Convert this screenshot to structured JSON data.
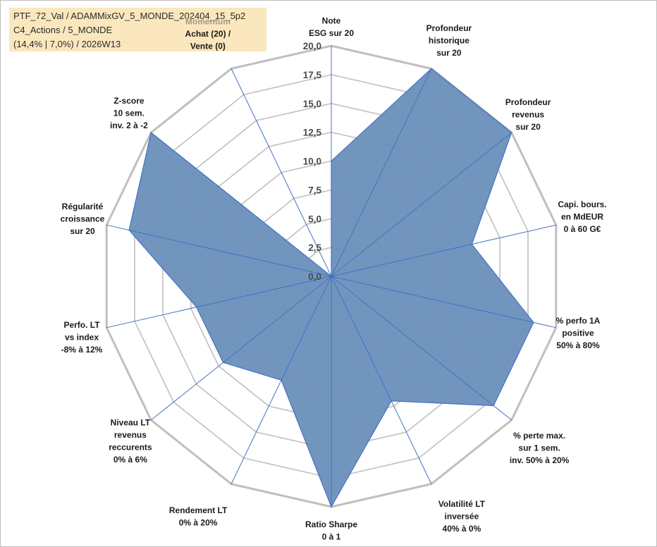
{
  "info": {
    "line1": "PTF_72_Val / ADAMMixGV_5_MONDE_202404_15_5p2",
    "line2": "C4_Actions / 5_MONDE",
    "line3": "(14,4% | 7,0%) / 2026W13"
  },
  "colors": {
    "fill": "#6a8fbb",
    "stroke": "#4472c4",
    "grid": "#bfbfbf",
    "momentum_label": "#a39a84",
    "info_bg": "#fbe7bd"
  },
  "chart_data": {
    "type": "radar",
    "range": [
      0,
      20
    ],
    "tick_values": [
      0,
      2.5,
      5,
      7.5,
      10,
      12.5,
      15,
      17.5,
      20
    ],
    "tick_labels": [
      "0,0",
      "2,5",
      "5,0",
      "7,5",
      "10,0",
      "12,5",
      "15,0",
      "17,5",
      "20,0"
    ],
    "axes": [
      {
        "lines": [
          "Note",
          "ESG sur 20"
        ],
        "value": 10.0
      },
      {
        "lines": [
          "Profondeur",
          "historique",
          "sur 20"
        ],
        "value": 20.0
      },
      {
        "lines": [
          "Profondeur",
          "revenus",
          "sur 20"
        ],
        "value": 20.0
      },
      {
        "lines": [
          "Capi. bours.",
          "en MdEUR",
          "0 à 60 G€"
        ],
        "value": 12.5
      },
      {
        "lines": [
          "% perfo 1A",
          "positive",
          "50% à 80%"
        ],
        "value": 18.0
      },
      {
        "lines": [
          "% perte max.",
          "sur 1 sem.",
          "inv. 50% à 20%"
        ],
        "value": 18.0
      },
      {
        "lines": [
          "Volatilité LT",
          "inversée",
          "40% à 0%"
        ],
        "value": 12.0
      },
      {
        "lines": [
          "Ratio Sharpe",
          "0 à 1"
        ],
        "value": 20.0
      },
      {
        "lines": [
          "Rendement LT",
          "0% à 20%"
        ],
        "value": 10.0
      },
      {
        "lines": [
          "Niveau LT",
          "revenus",
          "reccurents",
          "0% à 6%"
        ],
        "value": 12.0
      },
      {
        "lines": [
          "Perfo. LT",
          "vs index",
          "-8% à 12%"
        ],
        "value": 12.0
      },
      {
        "lines": [
          "Régularité",
          "croissance",
          "sur 20"
        ],
        "value": 18.0
      },
      {
        "lines": [
          "Z-score",
          "10 sem.",
          "inv. 2 à -2"
        ],
        "value": 20.0
      },
      {
        "lines": [
          "Momentum",
          "Achat (20) /",
          "Vente (0)"
        ],
        "value": 0.0,
        "muted_first_line": true
      }
    ]
  }
}
